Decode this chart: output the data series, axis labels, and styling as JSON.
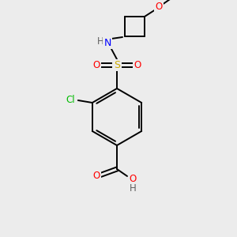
{
  "bg_color": "#ececec",
  "bond_color": "#000000",
  "atom_colors": {
    "O": "#ff0000",
    "N": "#0000ff",
    "S": "#ccaa00",
    "Cl": "#00bb00",
    "C": "#000000",
    "H": "#606060"
  },
  "figsize": [
    3.0,
    3.0
  ],
  "dpi": 100
}
